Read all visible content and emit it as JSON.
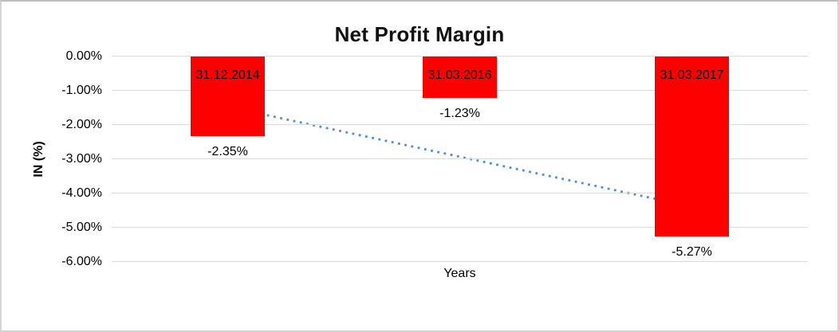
{
  "chart_data": {
    "type": "bar",
    "title": "Net Profit Margin",
    "xlabel": "Years",
    "ylabel": "IN (%)",
    "categories": [
      "31.12.2014",
      "31.03.2016",
      "31.03.2017"
    ],
    "values": [
      -2.35,
      -1.23,
      -5.27
    ],
    "value_labels": [
      "-2.35%",
      "-1.23%",
      "-5.27%"
    ],
    "ylim": [
      0,
      -6
    ],
    "yticks": [
      0,
      -1,
      -2,
      -3,
      -4,
      -5,
      -6
    ],
    "ytick_labels": [
      "0.00%",
      "-1.00%",
      "-2.00%",
      "-3.00%",
      "-4.00%",
      "-5.00%",
      "-6.00%"
    ],
    "grid": true,
    "legend": "none",
    "bar_color": "#FF0000",
    "gridline_color": "#DADADA",
    "trendline": {
      "style": "dotted",
      "color": "#4A90D2",
      "start_value": -1.49,
      "end_value": -4.41
    }
  }
}
